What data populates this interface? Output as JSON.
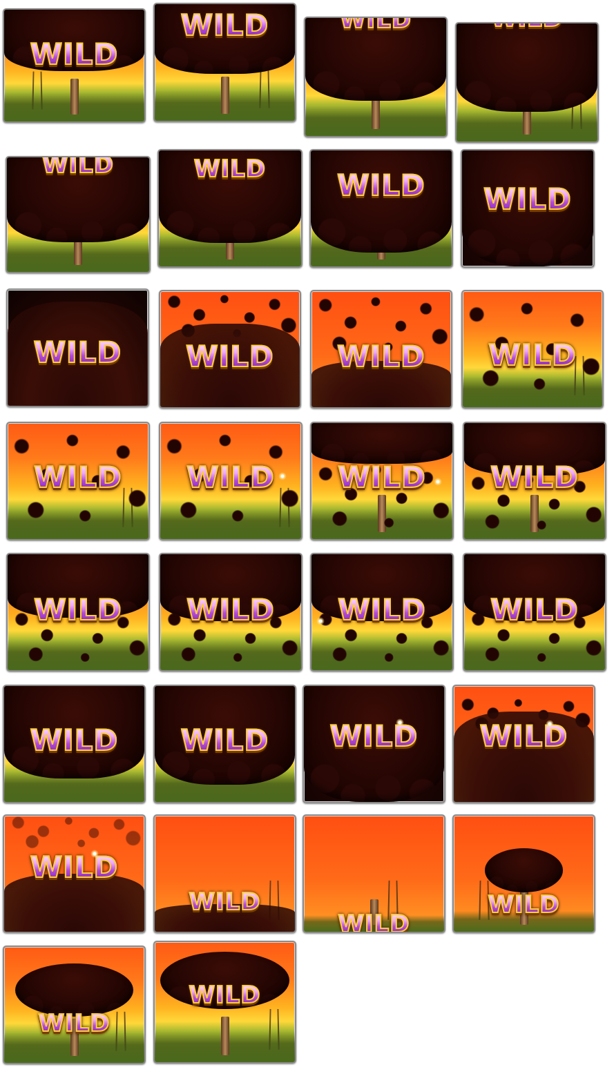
{
  "sheet": {
    "label": "WILD",
    "colors": {
      "sky_orange": "#ff5a14",
      "horizon_yellow": "#ffd83a",
      "ground_green": "#6f8a2a",
      "oil_brown": "#250603",
      "wild_purple": "#b24ad8",
      "wild_gold_outline": "#ffce3a",
      "frame_gray": "#8a8a8a"
    },
    "frames": [
      {
        "id": 1,
        "label": "WILD"
      },
      {
        "id": 2,
        "label": "WILD"
      },
      {
        "id": 3,
        "label": "WILD"
      },
      {
        "id": 4,
        "label": "WILD"
      },
      {
        "id": 5,
        "label": "WILD"
      },
      {
        "id": 6,
        "label": "WILD"
      },
      {
        "id": 7,
        "label": "WILD"
      },
      {
        "id": 8,
        "label": "WILD"
      },
      {
        "id": 9,
        "label": "WILD"
      },
      {
        "id": 10,
        "label": "WILD"
      },
      {
        "id": 11,
        "label": "WILD"
      },
      {
        "id": 12,
        "label": "WILD"
      },
      {
        "id": 13,
        "label": "WILD"
      },
      {
        "id": 14,
        "label": "WILD"
      },
      {
        "id": 15,
        "label": "WILD"
      },
      {
        "id": 16,
        "label": "WILD"
      },
      {
        "id": 17,
        "label": "WILD"
      },
      {
        "id": 18,
        "label": "WILD"
      },
      {
        "id": 19,
        "label": "WILD"
      },
      {
        "id": 20,
        "label": "WILD"
      },
      {
        "id": 21,
        "label": "WILD"
      },
      {
        "id": 22,
        "label": "WILD"
      },
      {
        "id": 23,
        "label": "WILD"
      },
      {
        "id": 24,
        "label": "WILD"
      },
      {
        "id": 25,
        "label": "WILD"
      },
      {
        "id": 26,
        "label": "WILD"
      },
      {
        "id": 27,
        "label": "WILD"
      },
      {
        "id": 28,
        "label": "WILD"
      },
      {
        "id": 29,
        "label": "WILD"
      },
      {
        "id": 30,
        "label": "WILD"
      }
    ]
  }
}
